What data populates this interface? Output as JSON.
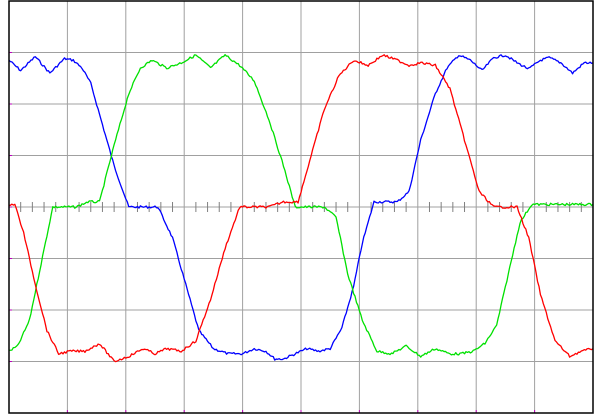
{
  "chart_data": {
    "type": "line",
    "title": "",
    "xlabel": "",
    "ylabel": "",
    "grid": true,
    "legend": "none",
    "x_divisions": 10,
    "y_divisions": 8,
    "xlim": [
      0,
      10
    ],
    "ylim": [
      -4,
      4
    ],
    "colors": {
      "background": "#ffffff",
      "frame": "#000000",
      "grid": "#a0a0a0",
      "ticks": "#808080",
      "marker": "#c000c0"
    },
    "series": [
      {
        "color": "#0000ff",
        "x": [
          0,
          0.2,
          0.45,
          0.7,
          0.95,
          1.1,
          1.25,
          1.4,
          1.55,
          1.8,
          2.05,
          2.3,
          2.55,
          2.8,
          3.05,
          3.25,
          3.5,
          3.75,
          4,
          4.2,
          4.4,
          4.55,
          4.7,
          4.9,
          5.1,
          5.3,
          5.5,
          5.7,
          5.9,
          6.05,
          6.25,
          6.45,
          6.65,
          6.85,
          7.05,
          7.3,
          7.5,
          7.7,
          7.9,
          8.1,
          8.3,
          8.5,
          8.7,
          8.9,
          9.1,
          9.25,
          9.45,
          9.65,
          9.85,
          10
        ],
        "y": [
          2.85,
          2.65,
          2.92,
          2.6,
          2.88,
          2.85,
          2.7,
          2.4,
          1.8,
          0.8,
          0,
          0,
          0,
          -0.6,
          -1.6,
          -2.4,
          -2.75,
          -2.85,
          -2.85,
          -2.75,
          -2.8,
          -2.95,
          -2.95,
          -2.85,
          -2.75,
          -2.8,
          -2.75,
          -2.35,
          -1.55,
          -0.7,
          0.1,
          0.1,
          0.1,
          0.3,
          1.3,
          2.2,
          2.7,
          2.95,
          2.85,
          2.65,
          2.9,
          2.95,
          2.8,
          2.68,
          2.85,
          2.9,
          2.8,
          2.6,
          2.8,
          2.8
        ]
      },
      {
        "color": "#00e000",
        "x": [
          0,
          0.15,
          0.35,
          0.55,
          0.75,
          0.95,
          1.15,
          1.35,
          1.55,
          1.8,
          2.05,
          2.25,
          2.45,
          2.7,
          2.95,
          3.2,
          3.45,
          3.7,
          3.95,
          4.2,
          4.45,
          4.7,
          4.9,
          5.15,
          5.4,
          5.6,
          5.8,
          6.05,
          6.3,
          6.55,
          6.8,
          7.05,
          7.3,
          7.55,
          7.75,
          7.95,
          8.15,
          8.35,
          8.55,
          8.75,
          8.95,
          9.2,
          9.45,
          9.7,
          10
        ],
        "y": [
          -2.8,
          -2.7,
          -2.2,
          -1.1,
          0,
          0,
          0,
          0.1,
          0.1,
          1.2,
          2.2,
          2.7,
          2.85,
          2.7,
          2.8,
          2.95,
          2.7,
          2.95,
          2.75,
          2.45,
          1.7,
          0.8,
          0,
          0,
          0,
          -0.2,
          -1.3,
          -2.2,
          -2.8,
          -2.85,
          -2.7,
          -2.9,
          -2.75,
          -2.85,
          -2.85,
          -2.8,
          -2.65,
          -2.3,
          -1.3,
          -0.3,
          0.05,
          0.05,
          0.05,
          0.05,
          0.05
        ]
      },
      {
        "color": "#ff0000",
        "x": [
          0,
          0.1,
          0.25,
          0.45,
          0.65,
          0.85,
          1.05,
          1.3,
          1.55,
          1.8,
          2.05,
          2.3,
          2.5,
          2.7,
          2.95,
          3.2,
          3.45,
          3.7,
          3.95,
          4.2,
          4.45,
          4.7,
          4.95,
          5.15,
          5.4,
          5.65,
          5.9,
          6.15,
          6.4,
          6.65,
          6.85,
          7.05,
          7.3,
          7.55,
          7.8,
          8.05,
          8.3,
          8.5,
          8.7,
          8.9,
          9.1,
          9.35,
          9.6,
          9.8,
          10
        ],
        "y": [
          0.05,
          0.05,
          -0.5,
          -1.5,
          -2.4,
          -2.85,
          -2.8,
          -2.8,
          -2.65,
          -3.0,
          -2.9,
          -2.75,
          -2.85,
          -2.75,
          -2.8,
          -2.6,
          -1.8,
          -0.8,
          0,
          0,
          0,
          0.1,
          0.1,
          0.9,
          1.9,
          2.55,
          2.85,
          2.75,
          2.95,
          2.85,
          2.75,
          2.8,
          2.75,
          2.3,
          1.3,
          0.3,
          0,
          0,
          0,
          -0.6,
          -1.7,
          -2.6,
          -2.9,
          -2.8,
          -2.75
        ]
      }
    ]
  }
}
